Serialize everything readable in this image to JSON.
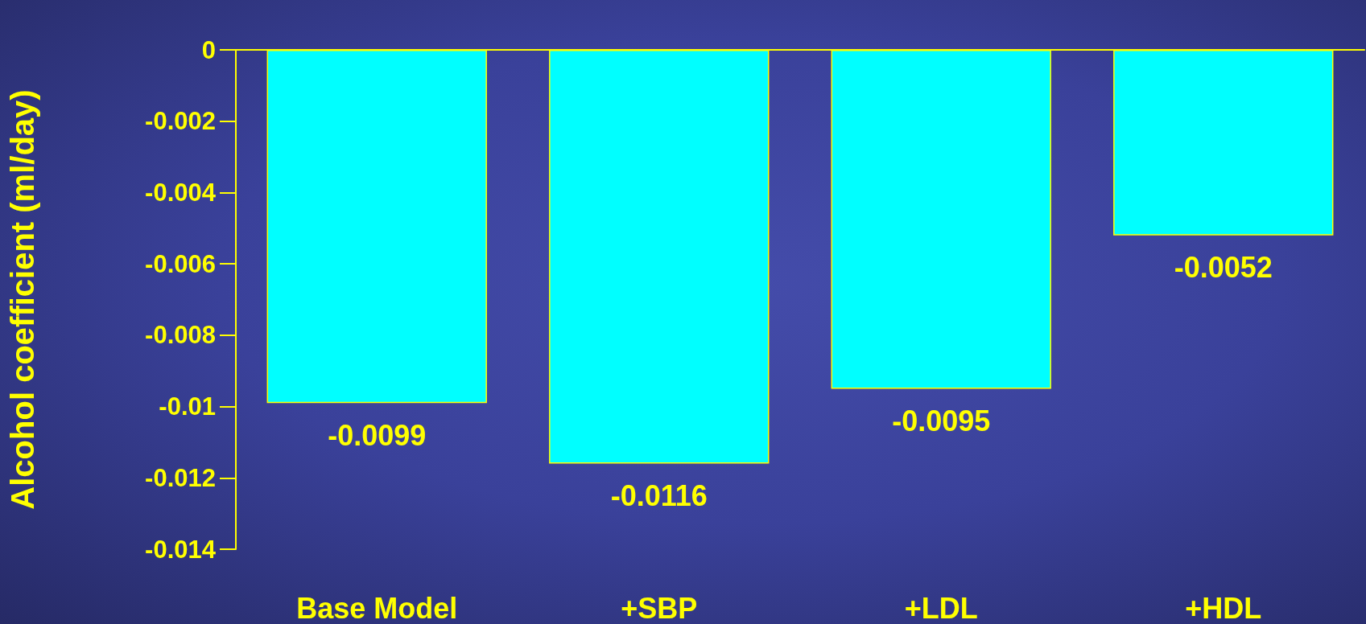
{
  "chart_data": {
    "type": "bar",
    "ylabel": "Alcohol coefficient (ml/day)",
    "categories": [
      "Base Model",
      "+SBP",
      "+LDL",
      "+HDL"
    ],
    "values": [
      -0.0099,
      -0.0116,
      -0.0095,
      -0.0052
    ],
    "color": "#00ffff",
    "ylim": [
      -0.014,
      0
    ],
    "yticks": [
      0,
      -0.002,
      -0.004,
      -0.006,
      -0.008,
      -0.01,
      -0.012,
      -0.014
    ],
    "data_labels": true
  }
}
